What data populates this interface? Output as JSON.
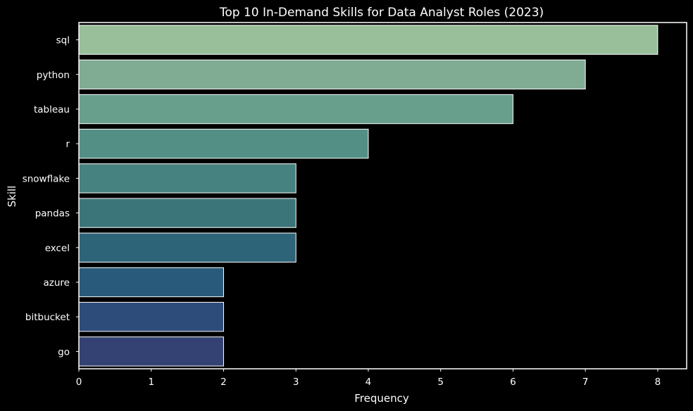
{
  "chart_data": {
    "type": "bar",
    "orientation": "horizontal",
    "title": "Top 10 In-Demand Skills for Data Analyst Roles (2023)",
    "xlabel": "Frequency",
    "ylabel": "Skill",
    "categories": [
      "sql",
      "python",
      "tableau",
      "r",
      "snowflake",
      "pandas",
      "excel",
      "azure",
      "bitbucket",
      "go"
    ],
    "values": [
      8,
      7,
      6,
      4,
      3,
      3,
      3,
      2,
      2,
      2
    ],
    "xlim": [
      0,
      8.4
    ],
    "xticks": [
      0,
      1,
      2,
      3,
      4,
      5,
      6,
      7,
      8
    ],
    "grid": false,
    "background": "#000000",
    "colors": [
      "#98bf9a",
      "#80ac93",
      "#679e8c",
      "#548f85",
      "#46827f",
      "#3b7579",
      "#2e6477",
      "#295a7b",
      "#2e4c7a",
      "#344273"
    ]
  }
}
